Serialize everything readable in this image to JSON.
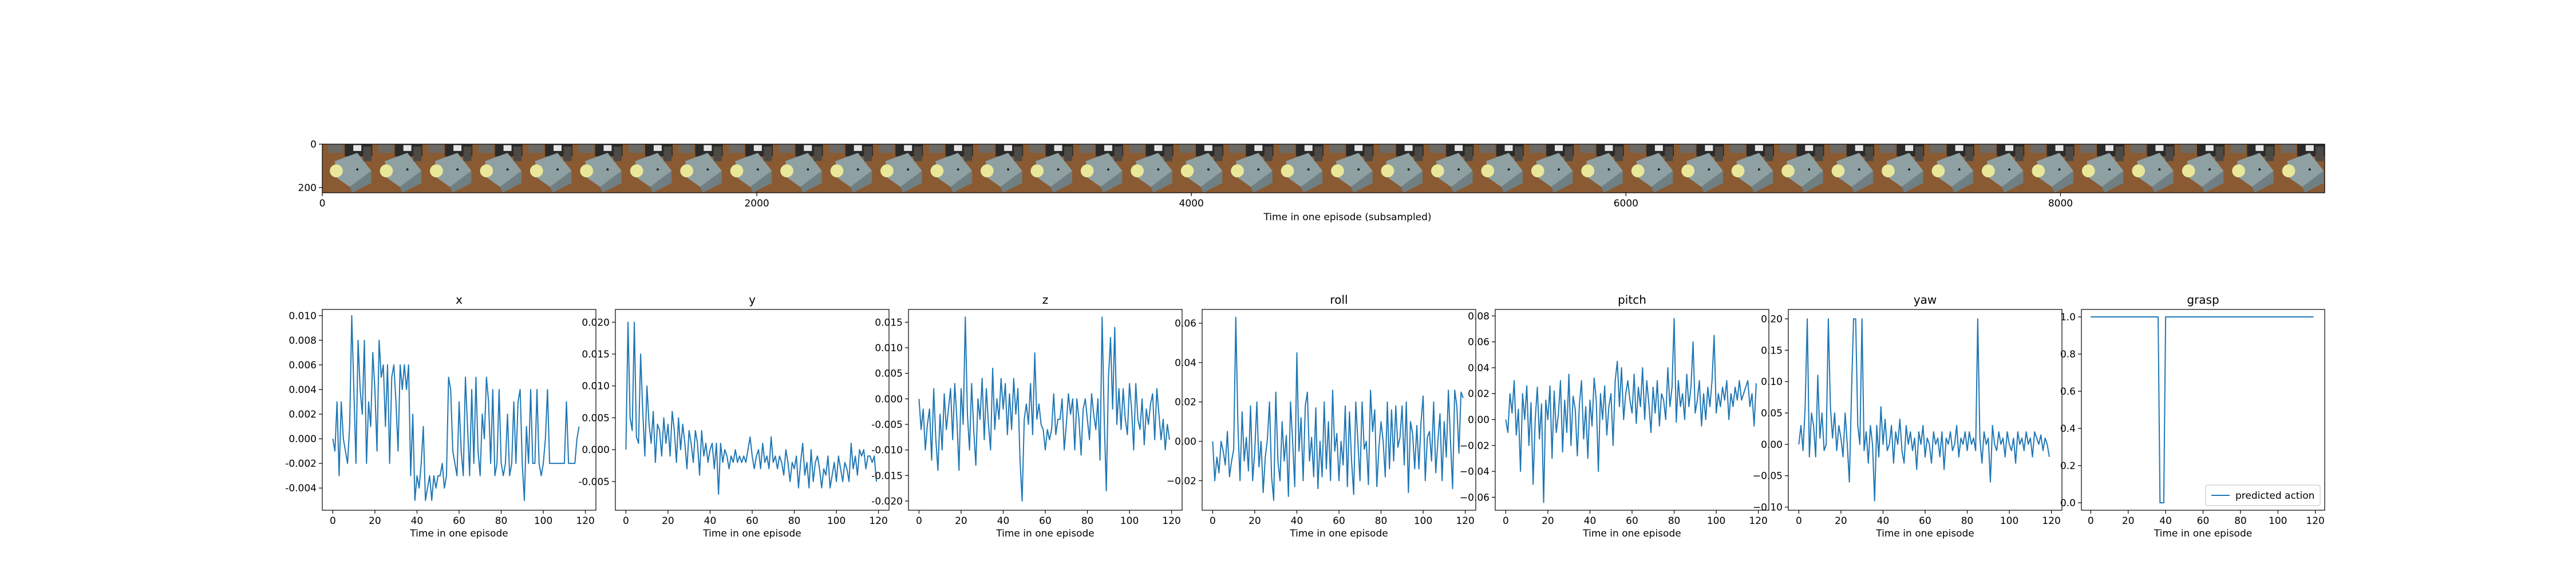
{
  "filmstrip": {
    "xlabel": "Time in one episode (subsampled)",
    "xticks": [
      0,
      2000,
      4000,
      6000,
      8000
    ],
    "yticks": [
      0,
      200
    ],
    "xlim": [
      0,
      9216
    ],
    "ylim": [
      224,
      0
    ],
    "frame_count": 40
  },
  "chart_data": [
    {
      "type": "line",
      "title": "x",
      "xlabel": "Time in one episode",
      "xlim": [
        -5,
        125
      ],
      "ylim": [
        -0.0058,
        0.0105
      ],
      "xticks": [
        0,
        20,
        40,
        60,
        80,
        100,
        120
      ],
      "yticks": [
        -0.004,
        -0.002,
        0.0,
        0.002,
        0.004,
        0.006,
        0.008,
        0.01
      ],
      "ytick_labels": [
        "-0.004",
        "-0.002",
        "0.000",
        "0.002",
        "0.004",
        "0.006",
        "0.008",
        "0.010"
      ],
      "series": [
        {
          "values": [
            0.0,
            -0.001,
            0.003,
            -0.003,
            0.003,
            0.0,
            -0.001,
            -0.002,
            0.001,
            0.01,
            0.004,
            -0.002,
            0.008,
            0.004,
            0.002,
            0.008,
            -0.002,
            0.003,
            0.001,
            0.007,
            0.004,
            -0.001,
            0.008,
            0.005,
            0.006,
            0.001,
            0.006,
            -0.002,
            0.005,
            0.006,
            0.003,
            -0.001,
            0.006,
            0.004,
            0.006,
            0.004,
            0.006,
            -0.003,
            0.002,
            -0.005,
            -0.003,
            -0.004,
            -0.002,
            0.001,
            -0.005,
            -0.004,
            -0.003,
            -0.005,
            -0.003,
            -0.004,
            -0.003,
            -0.003,
            -0.002,
            -0.004,
            -0.003,
            0.005,
            0.004,
            -0.001,
            -0.002,
            -0.003,
            0.003,
            -0.001,
            -0.003,
            0.005,
            0.001,
            -0.003,
            0.004,
            -0.002,
            0.005,
            -0.001,
            -0.003,
            0.002,
            0.0,
            0.005,
            0.003,
            -0.002,
            0.004,
            -0.003,
            -0.002,
            0.004,
            -0.002,
            -0.003,
            -0.002,
            0.002,
            -0.003,
            -0.002,
            0.003,
            -0.002,
            0.003,
            0.004,
            -0.002,
            -0.005,
            0.001,
            -0.002,
            0.004,
            -0.002,
            -0.002,
            0.004,
            -0.002,
            -0.003,
            -0.002,
            0.0,
            0.004,
            -0.002,
            -0.002,
            -0.002,
            -0.002,
            -0.002,
            -0.002,
            -0.002,
            -0.002,
            0.003,
            -0.002,
            -0.002,
            -0.002,
            -0.002,
            0.0,
            0.001
          ]
        }
      ]
    },
    {
      "type": "line",
      "title": "y",
      "xlabel": "Time in one episode",
      "xlim": [
        -5,
        125
      ],
      "ylim": [
        -0.0095,
        0.022
      ],
      "xticks": [
        0,
        20,
        40,
        60,
        80,
        100,
        120
      ],
      "yticks": [
        -0.005,
        0.0,
        0.005,
        0.01,
        0.015,
        0.02
      ],
      "ytick_labels": [
        "-0.005",
        "0.000",
        "0.005",
        "0.010",
        "0.015",
        "0.020"
      ],
      "series": [
        {
          "values": [
            0.0,
            0.02,
            0.005,
            0.003,
            0.02,
            0.002,
            0.001,
            0.015,
            0.006,
            -0.001,
            0.01,
            0.004,
            0.001,
            0.006,
            -0.002,
            0.004,
            0.003,
            -0.001,
            0.005,
            0.001,
            0.004,
            -0.001,
            0.006,
            0.003,
            -0.002,
            0.005,
            0.0,
            0.004,
            0.001,
            -0.003,
            0.003,
            0.001,
            -0.002,
            0.003,
            0.001,
            -0.004,
            0.003,
            -0.001,
            0.001,
            -0.002,
            0.0,
            0.001,
            -0.003,
            0.001,
            -0.007,
            0.001,
            -0.002,
            0.0,
            -0.001,
            -0.003,
            -0.001,
            -0.002,
            0.0,
            -0.002,
            -0.001,
            -0.002,
            -0.001,
            -0.002,
            0.0,
            0.002,
            -0.001,
            -0.003,
            -0.001,
            0.0,
            -0.003,
            0.001,
            -0.002,
            -0.001,
            -0.003,
            0.002,
            -0.002,
            -0.001,
            -0.003,
            -0.001,
            -0.002,
            -0.004,
            0.0,
            -0.002,
            -0.005,
            -0.002,
            -0.003,
            -0.001,
            -0.006,
            -0.002,
            0.001,
            -0.004,
            -0.002,
            -0.006,
            0.0,
            -0.005,
            -0.002,
            -0.001,
            -0.003,
            -0.006,
            -0.003,
            -0.004,
            -0.001,
            -0.006,
            -0.004,
            -0.002,
            -0.005,
            -0.001,
            -0.003,
            -0.005,
            -0.002,
            -0.003,
            -0.005,
            0.001,
            -0.003,
            -0.001,
            -0.004,
            0.0,
            -0.001,
            0.0,
            -0.003,
            -0.001,
            -0.001,
            -0.002,
            -0.001,
            -0.005
          ]
        }
      ]
    },
    {
      "type": "line",
      "title": "z",
      "xlabel": "Time in one episode",
      "xlim": [
        -5,
        125
      ],
      "ylim": [
        -0.0218,
        0.0175
      ],
      "xticks": [
        0,
        20,
        40,
        60,
        80,
        100,
        120
      ],
      "yticks": [
        -0.02,
        -0.015,
        -0.01,
        -0.005,
        0.0,
        0.005,
        0.01,
        0.015
      ],
      "ytick_labels": [
        "-0.020",
        "-0.015",
        "-0.010",
        "-0.005",
        "0.000",
        "0.005",
        "0.010",
        "0.015"
      ],
      "series": [
        {
          "values": [
            0.0,
            -0.006,
            -0.002,
            -0.01,
            -0.005,
            -0.002,
            -0.012,
            0.002,
            -0.008,
            -0.014,
            -0.003,
            -0.01,
            0.001,
            -0.006,
            -0.002,
            0.002,
            -0.008,
            0.003,
            -0.004,
            -0.014,
            0.002,
            -0.005,
            0.016,
            -0.003,
            -0.01,
            0.003,
            -0.006,
            -0.013,
            0.0,
            -0.004,
            0.004,
            -0.008,
            0.002,
            -0.005,
            -0.01,
            0.006,
            -0.006,
            0.0,
            -0.004,
            0.004,
            -0.002,
            0.003,
            -0.007,
            0.001,
            -0.006,
            0.004,
            -0.003,
            0.002,
            -0.012,
            -0.02,
            -0.004,
            -0.001,
            -0.005,
            0.003,
            -0.007,
            0.009,
            -0.004,
            -0.001,
            -0.005,
            -0.006,
            -0.01,
            -0.006,
            -0.008,
            -0.006,
            0.001,
            -0.007,
            -0.004,
            -0.004,
            0.0,
            -0.01,
            -0.005,
            0.001,
            -0.003,
            0.0,
            -0.01,
            0.0,
            -0.004,
            -0.011,
            -0.002,
            0.0,
            -0.004,
            -0.008,
            0.001,
            -0.003,
            -0.006,
            0.0,
            -0.012,
            0.016,
            -0.004,
            -0.018,
            0.004,
            0.012,
            -0.002,
            0.014,
            -0.005,
            0.002,
            -0.006,
            0.002,
            -0.004,
            -0.007,
            0.003,
            -0.002,
            -0.01,
            0.003,
            -0.004,
            -0.006,
            0.0,
            -0.009,
            -0.002,
            -0.005,
            -0.001,
            0.001,
            -0.008,
            0.002,
            -0.003,
            -0.008,
            -0.004,
            -0.01,
            -0.005,
            -0.008
          ]
        }
      ]
    },
    {
      "type": "line",
      "title": "roll",
      "xlabel": "Time in one episode",
      "xlim": [
        -5,
        125
      ],
      "ylim": [
        -0.035,
        0.067
      ],
      "xticks": [
        0,
        20,
        40,
        60,
        80,
        100,
        120
      ],
      "yticks": [
        -0.02,
        0.0,
        0.02,
        0.04,
        0.06
      ],
      "ytick_labels": [
        "−0.02",
        "0.00",
        "0.02",
        "0.04",
        "0.06"
      ],
      "series": [
        {
          "values": [
            0.0,
            -0.02,
            -0.008,
            -0.016,
            0.0,
            -0.005,
            -0.012,
            0.005,
            -0.018,
            -0.01,
            -0.004,
            0.063,
            0.008,
            -0.02,
            0.015,
            -0.01,
            0.002,
            -0.015,
            0.018,
            -0.02,
            -0.005,
            0.02,
            -0.013,
            0.0,
            -0.026,
            -0.008,
            0.001,
            0.02,
            -0.018,
            -0.03,
            0.025,
            -0.01,
            -0.02,
            0.01,
            -0.01,
            0.003,
            -0.028,
            0.02,
            0.0,
            -0.023,
            0.045,
            -0.005,
            0.012,
            -0.02,
            0.018,
            0.025,
            -0.01,
            0.002,
            -0.018,
            0.017,
            -0.024,
            0.0,
            -0.018,
            0.02,
            -0.014,
            0.01,
            -0.02,
            0.026,
            -0.005,
            0.004,
            -0.02,
            0.0,
            -0.012,
            0.018,
            -0.023,
            0.015,
            -0.01,
            -0.027,
            0.02,
            0.0,
            -0.02,
            0.02,
            -0.004,
            0.0,
            -0.022,
            0.026,
            0.005,
            0.016,
            -0.023,
            -0.003,
            0.01,
            0.0,
            -0.018,
            0.02,
            -0.014,
            0.016,
            -0.01,
            0.018,
            -0.003,
            0.002,
            0.018,
            -0.012,
            0.02,
            -0.026,
            0.01,
            0.004,
            -0.014,
            0.008,
            -0.014,
            0.01,
            0.023,
            -0.02,
            0.002,
            0.005,
            -0.01,
            0.02,
            -0.016,
            0.0,
            0.014,
            -0.02,
            0.01,
            -0.008,
            0.026,
            0.0,
            -0.024,
            0.026,
            0.018,
            -0.006,
            0.025,
            0.022
          ]
        }
      ]
    },
    {
      "type": "line",
      "title": "pitch",
      "xlabel": "Time in one episode",
      "xlim": [
        -5,
        125
      ],
      "ylim": [
        -0.07,
        0.085
      ],
      "xticks": [
        0,
        20,
        40,
        60,
        80,
        100,
        120
      ],
      "yticks": [
        -0.06,
        -0.04,
        -0.02,
        0.0,
        0.02,
        0.04,
        0.06,
        0.08
      ],
      "ytick_labels": [
        "−0.06",
        "−0.04",
        "−0.02",
        "0.00",
        "0.02",
        "0.04",
        "0.06",
        "0.08"
      ],
      "series": [
        {
          "values": [
            0.0,
            -0.01,
            0.02,
            0.005,
            0.03,
            -0.012,
            0.008,
            -0.04,
            0.02,
            0.0,
            0.026,
            -0.02,
            0.013,
            -0.05,
            0.0,
            0.025,
            -0.015,
            0.012,
            -0.064,
            0.015,
            0.0,
            0.026,
            -0.03,
            0.022,
            -0.01,
            0.004,
            0.03,
            -0.025,
            0.015,
            -0.01,
            0.035,
            -0.02,
            0.018,
            0.008,
            -0.028,
            0.012,
            0.03,
            -0.015,
            0.01,
            -0.03,
            0.015,
            -0.005,
            0.032,
            0.015,
            -0.04,
            0.02,
            0.0,
            0.026,
            -0.012,
            0.01,
            0.02,
            -0.02,
            0.03,
            0.045,
            0.01,
            0.04,
            0.0,
            0.02,
            0.03,
            0.015,
            0.005,
            0.035,
            -0.003,
            0.025,
            0.01,
            0.04,
            0.0,
            0.03,
            0.012,
            -0.01,
            0.025,
            0.005,
            0.03,
            -0.005,
            0.02,
            0.015,
            0.0,
            0.04,
            0.01,
            0.025,
            0.078,
            -0.002,
            0.03,
            0.01,
            0.02,
            0.0,
            0.035,
            0.01,
            0.025,
            0.06,
            0.005,
            0.015,
            0.03,
            -0.005,
            0.02,
            0.0,
            0.025,
            0.01,
            0.03,
            0.065,
            0.005,
            0.02,
            0.01,
            0.025,
            0.015,
            0.03,
            0.0,
            0.02,
            0.01,
            0.025,
            0.015,
            0.03,
            0.015,
            0.02,
            0.025,
            0.03,
            0.01,
            0.02,
            -0.005,
            0.028
          ]
        }
      ]
    },
    {
      "type": "line",
      "title": "yaw",
      "xlabel": "Time in one episode",
      "xlim": [
        -5,
        125
      ],
      "ylim": [
        -0.105,
        0.215
      ],
      "xticks": [
        0,
        20,
        40,
        60,
        80,
        100,
        120
      ],
      "yticks": [
        -0.1,
        -0.05,
        0.0,
        0.05,
        0.1,
        0.15,
        0.2
      ],
      "ytick_labels": [
        "−0.10",
        "−0.05",
        "0.00",
        "0.05",
        "0.10",
        "0.15",
        "0.20"
      ],
      "series": [
        {
          "values": [
            0.0,
            0.03,
            -0.01,
            0.06,
            0.2,
            -0.02,
            0.05,
            0.03,
            -0.02,
            0.11,
            0.01,
            0.05,
            -0.01,
            0.0,
            0.2,
            0.06,
            0.01,
            0.05,
            -0.01,
            0.03,
            0.01,
            -0.02,
            0.05,
            0.0,
            -0.06,
            0.08,
            0.2,
            0.2,
            0.03,
            0.0,
            0.2,
            -0.01,
            0.02,
            -0.03,
            0.03,
            0.0,
            -0.09,
            0.03,
            -0.02,
            0.06,
            0.0,
            0.04,
            -0.01,
            0.0,
            0.03,
            -0.03,
            0.02,
            0.0,
            0.04,
            -0.01,
            -0.03,
            0.03,
            0.0,
            0.02,
            -0.01,
            0.01,
            -0.04,
            0.02,
            0.0,
            0.03,
            -0.02,
            0.01,
            0.0,
            -0.03,
            0.02,
            0.0,
            0.01,
            -0.02,
            0.02,
            -0.04,
            0.01,
            0.0,
            0.02,
            -0.01,
            0.0,
            0.03,
            -0.02,
            0.01,
            0.0,
            0.02,
            -0.01,
            0.02,
            0.0,
            0.01,
            -0.01,
            0.2,
            0.01,
            -0.03,
            0.02,
            0.0,
            0.01,
            -0.06,
            0.03,
            0.0,
            -0.01,
            0.02,
            0.0,
            0.01,
            -0.02,
            0.02,
            0.0,
            -0.01,
            0.01,
            -0.03,
            0.02,
            0.0,
            0.01,
            -0.01,
            0.02,
            0.0,
            0.01,
            -0.02,
            0.02,
            0.01,
            0.0,
            0.015,
            -0.01,
            0.01,
            0.0,
            -0.02
          ]
        }
      ]
    },
    {
      "type": "line",
      "title": "grasp",
      "xlabel": "Time in one episode",
      "xlim": [
        -5,
        125
      ],
      "ylim": [
        -0.04,
        1.04
      ],
      "xticks": [
        0,
        20,
        40,
        60,
        80,
        100,
        120
      ],
      "yticks": [
        0.0,
        0.2,
        0.4,
        0.6,
        0.8,
        1.0
      ],
      "ytick_labels": [
        "0.0",
        "0.2",
        "0.4",
        "0.6",
        "0.8",
        "1.0"
      ],
      "legend": {
        "location": "lower-right",
        "entries": [
          "predicted action"
        ]
      },
      "series": [
        {
          "name": "predicted action",
          "points": [
            [
              0,
              1.0
            ],
            [
              36,
              1.0
            ],
            [
              37,
              0.0
            ],
            [
              39,
              0.0
            ],
            [
              40,
              1.0
            ],
            [
              119,
              1.0
            ]
          ]
        }
      ]
    }
  ]
}
